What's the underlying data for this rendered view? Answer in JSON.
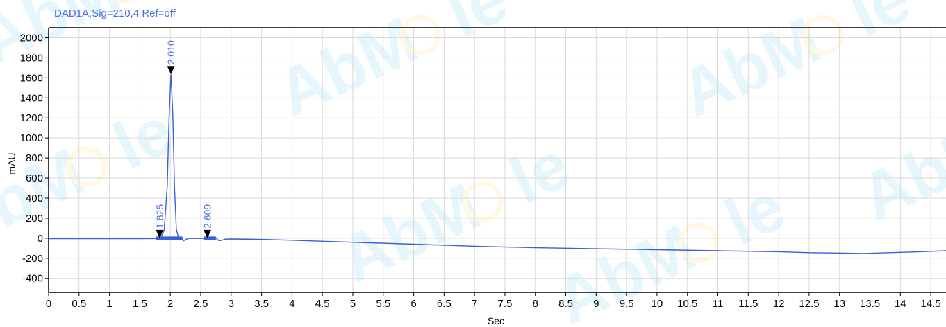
{
  "signal_title": "DAD1A,Sig=210,4  Ref=off",
  "watermark": {
    "text_pre": "AbM",
    "text_post": "le",
    "text_color": "#5ac3ea",
    "ring_color": "#ffd24d"
  },
  "colors": {
    "trace": "#3b5fd6",
    "peak_label": "#4a6fe0",
    "grid": "#d9d9d9",
    "axis": "#000000",
    "marker": "#000000",
    "baseline_bar": "#3b5fd6"
  },
  "chart_data": {
    "type": "line",
    "title": "",
    "xlabel": "Sec",
    "ylabel": "mAU",
    "xlim": [
      0,
      14.75
    ],
    "ylim": [
      -540,
      2100
    ],
    "grid": true,
    "x_ticks": [
      0,
      0.5,
      1,
      1.5,
      2,
      2.5,
      3,
      3.5,
      4,
      4.5,
      5,
      5.5,
      6,
      6.5,
      7,
      7.5,
      8,
      8.5,
      9,
      9.5,
      10,
      10.5,
      11,
      11.5,
      12,
      12.5,
      13,
      13.5,
      14,
      14.5
    ],
    "x_tick_labels": [
      "0",
      "0.5",
      "1",
      "1.5",
      "2",
      "2.5",
      "3",
      "3.5",
      "4",
      "4.5",
      "5",
      "5.5",
      "6",
      "6.5",
      "7",
      "7.5",
      "8",
      "8.5",
      "9",
      "9.5",
      "10",
      "10.5",
      "11",
      "11.5",
      "12",
      "12.5",
      "13",
      "13.5",
      "14",
      "14.5"
    ],
    "y_ticks": [
      -400,
      -200,
      0,
      200,
      400,
      600,
      800,
      1000,
      1200,
      1400,
      1600,
      1800,
      2000
    ],
    "y_tick_labels": [
      "-400",
      "-200",
      "0",
      "200",
      "400",
      "600",
      "800",
      "1000",
      "1200",
      "1400",
      "1600",
      "1800",
      "2000"
    ],
    "series": [
      {
        "x": [
          0,
          0.5,
          1.0,
          1.5,
          1.7,
          1.8,
          1.82,
          1.85,
          1.9,
          1.95,
          1.98,
          2.01,
          2.04,
          2.07,
          2.1,
          2.13,
          2.18,
          2.22,
          2.25,
          2.3,
          2.4,
          2.5,
          2.6,
          2.63,
          2.66,
          2.7,
          2.75,
          2.8,
          2.85,
          2.9,
          3.0,
          3.5,
          4.0,
          5.0,
          6.0,
          7.0,
          8.0,
          9.0,
          10.0,
          11.0,
          12.0,
          12.5,
          13.0,
          13.4,
          13.8,
          14.2,
          14.75
        ],
        "y": [
          -5,
          -5,
          -5,
          -5,
          -4,
          -3,
          0,
          10,
          80,
          520,
          1200,
          1635,
          1250,
          500,
          90,
          15,
          0,
          -25,
          -15,
          -2,
          -2,
          -2,
          -3,
          5,
          8,
          3,
          0,
          -25,
          -20,
          -10,
          -8,
          -12,
          -20,
          -40,
          -60,
          -80,
          -95,
          -105,
          -115,
          -125,
          -135,
          -145,
          -148,
          -152,
          -145,
          -138,
          -125
        ]
      }
    ],
    "peaks": [
      {
        "label": "1.825",
        "x": 1.825,
        "y": 0
      },
      {
        "label": "2.010",
        "x": 2.01,
        "y": 1635
      },
      {
        "label": "2.609",
        "x": 2.609,
        "y": 0
      }
    ],
    "integration_baselines": [
      {
        "x0": 1.77,
        "x1": 2.2
      },
      {
        "x0": 2.55,
        "x1": 2.75
      }
    ]
  }
}
